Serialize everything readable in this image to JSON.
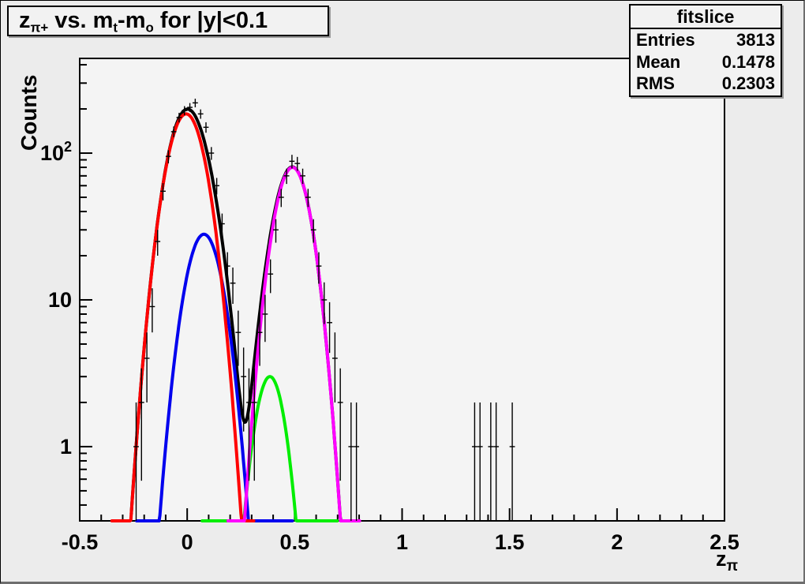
{
  "colors": {
    "canvas_bg": "#ececec",
    "frame_bg": "#f4f4f4",
    "axis": "#000000"
  },
  "title": {
    "segments": [
      {
        "t": "z"
      },
      {
        "t": "π+",
        "sub": true
      },
      {
        "t": " vs. m"
      },
      {
        "t": "t",
        "sub": true
      },
      {
        "t": "-m"
      },
      {
        "t": "o",
        "sub": true
      },
      {
        "t": " for |y|<0.1"
      }
    ]
  },
  "stats": {
    "header": "fitslice",
    "rows": [
      {
        "label": "Entries",
        "value": "3813"
      },
      {
        "label": "Mean",
        "value": "0.1478"
      },
      {
        "label": "RMS",
        "value": "0.2303"
      }
    ]
  },
  "axes": {
    "x": {
      "title_segments": [
        {
          "t": "z"
        },
        {
          "t": "π",
          "sub": true
        }
      ],
      "min": -0.5,
      "max": 2.5,
      "minor_step": 0.1,
      "major_ticks": [
        {
          "value": -0.5,
          "label": "-0.5"
        },
        {
          "value": 0,
          "label": "0"
        },
        {
          "value": 0.5,
          "label": "0.5"
        },
        {
          "value": 1,
          "label": "1"
        },
        {
          "value": 1.5,
          "label": "1.5"
        },
        {
          "value": 2,
          "label": "2"
        },
        {
          "value": 2.5,
          "label": "2.5"
        }
      ]
    },
    "y": {
      "label": "Counts",
      "scale": "log",
      "major_ticks": [
        {
          "value": 1,
          "base": "1",
          "exp": ""
        },
        {
          "value": 10,
          "base": "10",
          "exp": ""
        },
        {
          "value": 100,
          "base": "10",
          "exp": "2"
        }
      ]
    }
  },
  "chart_data": {
    "type": "histogram-errorbars-with-gaussian-fits",
    "title": "z_pi+ vs. m_t-m_o for |y|<0.1",
    "xlabel": "z_pi",
    "ylabel": "Counts",
    "x_range": [
      -0.5,
      2.5
    ],
    "y_range": [
      0.312,
      442
    ],
    "y_scale": "log",
    "bin_width": 0.025,
    "grid": false,
    "points": [
      [
        -0.2375,
        1
      ],
      [
        -0.2125,
        2
      ],
      [
        -0.1875,
        4
      ],
      [
        -0.1625,
        9
      ],
      [
        -0.1375,
        25
      ],
      [
        -0.1125,
        55
      ],
      [
        -0.0875,
        95
      ],
      [
        -0.0625,
        140
      ],
      [
        -0.0375,
        175
      ],
      [
        -0.0125,
        195
      ],
      [
        0.0125,
        205
      ],
      [
        0.0375,
        220
      ],
      [
        0.0625,
        185
      ],
      [
        0.0875,
        150
      ],
      [
        0.1125,
        100
      ],
      [
        0.1375,
        60
      ],
      [
        0.1625,
        33
      ],
      [
        0.1875,
        17
      ],
      [
        0.2125,
        13
      ],
      [
        0.2375,
        6
      ],
      [
        0.2625,
        3
      ],
      [
        0.2875,
        2
      ],
      [
        0.3125,
        2
      ],
      [
        0.3375,
        6
      ],
      [
        0.3625,
        8
      ],
      [
        0.3875,
        15
      ],
      [
        0.4125,
        30
      ],
      [
        0.4375,
        50
      ],
      [
        0.4625,
        70
      ],
      [
        0.4875,
        88
      ],
      [
        0.5125,
        85
      ],
      [
        0.5375,
        70
      ],
      [
        0.5625,
        50
      ],
      [
        0.5875,
        30
      ],
      [
        0.6125,
        17
      ],
      [
        0.6375,
        10
      ],
      [
        0.6625,
        7
      ],
      [
        0.6875,
        4
      ],
      [
        0.7125,
        2
      ],
      [
        0.7625,
        1
      ],
      [
        0.7875,
        1
      ],
      [
        1.3375,
        1
      ],
      [
        1.3625,
        1
      ],
      [
        1.4125,
        1
      ],
      [
        1.4375,
        1
      ],
      [
        1.5125,
        1
      ]
    ],
    "curves": [
      {
        "name": "total-fit",
        "color": "#000000",
        "range": [
          -0.26,
          0.755
        ],
        "sum_of": [
          "background2-fit",
          "background1-fit",
          "signal1-fit",
          "signal2-fit"
        ]
      },
      {
        "name": "background2-fit",
        "color": "#00ee00",
        "range": [
          0.07,
          0.7
        ],
        "gauss": {
          "amp": 3.0,
          "mean": 0.385,
          "sigma": 0.057
        }
      },
      {
        "name": "background1-fit",
        "color": "#0000ee",
        "range": [
          -0.235,
          0.49
        ],
        "gauss": {
          "amp": 28,
          "mean": 0.078,
          "sigma": 0.069
        }
      },
      {
        "name": "signal1-fit",
        "color": "#ff0000",
        "range": [
          -0.35,
          0.31
        ],
        "gauss": {
          "amp": 185,
          "mean": -0.005,
          "sigma": 0.072
        }
      },
      {
        "name": "signal2-fit",
        "color": "#ff00ff",
        "range": [
          0.19,
          0.805
        ],
        "gauss": {
          "amp": 80,
          "mean": 0.49,
          "sigma": 0.067
        }
      }
    ]
  }
}
